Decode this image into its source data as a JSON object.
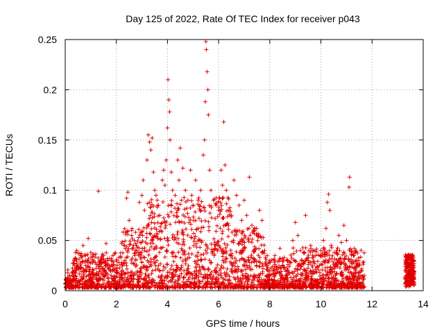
{
  "chart_data": {
    "type": "scatter",
    "title": "Day 125 of 2022, Rate Of TEC Index for receiver p043",
    "xlabel": "GPS time / hours",
    "ylabel": "ROTI / TECUs",
    "xlim": [
      0,
      14
    ],
    "ylim": [
      0,
      0.25
    ],
    "x_ticks": [
      "0",
      "2",
      "4",
      "6",
      "8",
      "10",
      "12",
      "14"
    ],
    "y_ticks": [
      "0",
      "0.05",
      "0.1",
      "0.15",
      "0.2",
      "0.25"
    ],
    "grid": true,
    "marker": "+",
    "color": "#e00000",
    "legend": "none",
    "series": [
      {
        "points": [
          [
            0.05,
            0.01
          ],
          [
            0.15,
            0.008
          ],
          [
            0.2,
            0.012
          ],
          [
            0.3,
            0.018
          ],
          [
            0.35,
            0.03
          ],
          [
            0.45,
            0.04
          ],
          [
            0.5,
            0.022
          ],
          [
            0.6,
            0.035
          ],
          [
            0.7,
            0.045
          ],
          [
            0.8,
            0.03
          ],
          [
            0.9,
            0.052
          ],
          [
            1.0,
            0.038
          ],
          [
            1.1,
            0.02
          ],
          [
            1.2,
            0.015
          ],
          [
            1.3,
            0.099
          ],
          [
            1.4,
            0.028
          ],
          [
            1.5,
            0.035
          ],
          [
            1.6,
            0.047
          ],
          [
            1.7,
            0.022
          ],
          [
            1.8,
            0.03
          ],
          [
            1.9,
            0.026
          ],
          [
            2.0,
            0.02
          ],
          [
            2.1,
            0.033
          ],
          [
            2.2,
            0.028
          ],
          [
            2.3,
            0.045
          ],
          [
            2.4,
            0.092
          ],
          [
            2.45,
            0.098
          ],
          [
            2.5,
            0.07
          ],
          [
            2.6,
            0.06
          ],
          [
            2.7,
            0.05
          ],
          [
            2.8,
            0.04
          ],
          [
            2.9,
            0.088
          ],
          [
            3.0,
            0.095
          ],
          [
            3.05,
            0.11
          ],
          [
            3.1,
            0.08
          ],
          [
            3.2,
            0.13
          ],
          [
            3.25,
            0.155
          ],
          [
            3.3,
            0.148
          ],
          [
            3.35,
            0.14
          ],
          [
            3.4,
            0.152
          ],
          [
            3.45,
            0.118
          ],
          [
            3.5,
            0.1
          ],
          [
            3.55,
            0.095
          ],
          [
            3.6,
            0.09
          ],
          [
            3.65,
            0.085
          ],
          [
            3.7,
            0.075
          ],
          [
            3.8,
            0.11
          ],
          [
            3.85,
            0.12
          ],
          [
            3.9,
            0.105
          ],
          [
            3.95,
            0.13
          ],
          [
            4.0,
            0.162
          ],
          [
            4.02,
            0.21
          ],
          [
            4.05,
            0.19
          ],
          [
            4.08,
            0.178
          ],
          [
            4.1,
            0.15
          ],
          [
            4.15,
            0.118
          ],
          [
            4.2,
            0.1
          ],
          [
            4.3,
            0.095
          ],
          [
            4.4,
            0.13
          ],
          [
            4.45,
            0.11
          ],
          [
            4.5,
            0.142
          ],
          [
            4.55,
            0.09
          ],
          [
            4.6,
            0.122
          ],
          [
            4.7,
            0.1
          ],
          [
            4.8,
            0.09
          ],
          [
            4.9,
            0.12
          ],
          [
            4.95,
            0.095
          ],
          [
            5.0,
            0.085
          ],
          [
            5.1,
            0.11
          ],
          [
            5.2,
            0.09
          ],
          [
            5.3,
            0.1
          ],
          [
            5.4,
            0.135
          ],
          [
            5.45,
            0.15
          ],
          [
            5.48,
            0.188
          ],
          [
            5.5,
            0.248
          ],
          [
            5.52,
            0.24
          ],
          [
            5.55,
            0.218
          ],
          [
            5.58,
            0.2
          ],
          [
            5.6,
            0.175
          ],
          [
            5.65,
            0.12
          ],
          [
            5.7,
            0.1
          ],
          [
            5.8,
            0.09
          ],
          [
            5.9,
            0.085
          ],
          [
            6.0,
            0.08
          ],
          [
            6.1,
            0.12
          ],
          [
            6.15,
            0.105
          ],
          [
            6.2,
            0.168
          ],
          [
            6.25,
            0.125
          ],
          [
            6.3,
            0.1
          ],
          [
            6.4,
            0.08
          ],
          [
            6.5,
            0.075
          ],
          [
            6.6,
            0.11
          ],
          [
            6.7,
            0.095
          ],
          [
            6.8,
            0.085
          ],
          [
            6.9,
            0.07
          ],
          [
            7.0,
            0.09
          ],
          [
            7.1,
            0.075
          ],
          [
            7.2,
            0.113
          ],
          [
            7.3,
            0.065
          ],
          [
            7.4,
            0.06
          ],
          [
            7.5,
            0.055
          ],
          [
            7.6,
            0.08
          ],
          [
            7.7,
            0.07
          ],
          [
            7.8,
            0.04
          ],
          [
            7.9,
            0.035
          ],
          [
            8.0,
            0.03
          ],
          [
            8.2,
            0.035
          ],
          [
            8.4,
            0.042
          ],
          [
            8.5,
            0.025
          ],
          [
            8.7,
            0.03
          ],
          [
            8.9,
            0.05
          ],
          [
            9.0,
            0.068
          ],
          [
            9.1,
            0.055
          ],
          [
            9.2,
            0.04
          ],
          [
            9.4,
            0.075
          ],
          [
            9.5,
            0.03
          ],
          [
            9.6,
            0.045
          ],
          [
            9.8,
            0.035
          ],
          [
            10.0,
            0.04
          ],
          [
            10.1,
            0.05
          ],
          [
            10.2,
            0.062
          ],
          [
            10.25,
            0.088
          ],
          [
            10.3,
            0.096
          ],
          [
            10.35,
            0.08
          ],
          [
            10.4,
            0.045
          ],
          [
            10.6,
            0.038
          ],
          [
            10.7,
            0.055
          ],
          [
            10.8,
            0.048
          ],
          [
            10.9,
            0.065
          ],
          [
            11.0,
            0.05
          ],
          [
            11.1,
            0.103
          ],
          [
            11.12,
            0.113
          ],
          [
            11.2,
            0.04
          ],
          [
            11.3,
            0.035
          ],
          [
            11.4,
            0.03
          ],
          [
            11.5,
            0.025
          ],
          [
            11.6,
            0.02
          ],
          [
            11.7,
            0.015
          ],
          [
            13.3,
            0.02
          ],
          [
            13.35,
            0.03
          ],
          [
            13.4,
            0.035
          ],
          [
            13.45,
            0.025
          ],
          [
            13.5,
            0.018
          ],
          [
            13.55,
            0.03
          ],
          [
            13.6,
            0.022
          ],
          [
            13.65,
            0.012
          ]
        ]
      }
    ]
  }
}
